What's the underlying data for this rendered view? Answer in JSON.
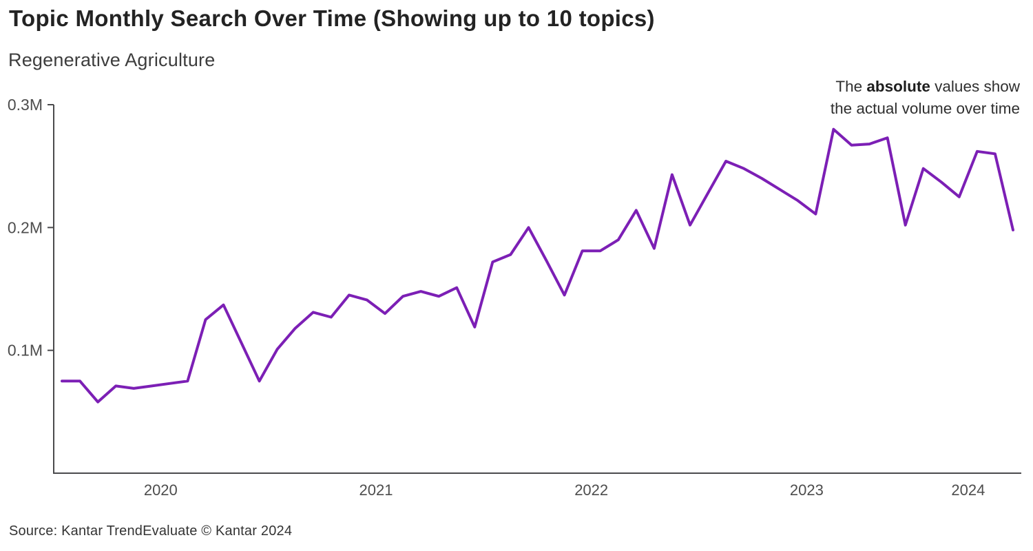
{
  "header": {
    "title": "Topic Monthly Search Over Time (Showing up to 10 topics)",
    "subtitle": "Regenerative Agriculture"
  },
  "annotation": {
    "line1_pre": "The ",
    "line1_bold": "absolute",
    "line1_post": " values show",
    "line2": "the actual volume over time"
  },
  "footer": {
    "source": "Source: Kantar TrendEvaluate © Kantar 2024"
  },
  "colors": {
    "line": "#7C1FB5",
    "axis": "#4a4a4c",
    "tick_label": "#4d4d4d",
    "title": "#232323"
  },
  "chart_data": {
    "type": "line",
    "title": "Topic Monthly Search Over Time (Showing up to 10 topics)",
    "series_name": "Regenerative Agriculture",
    "unit": "millions of monthly searches",
    "legend_position": "none",
    "grid": false,
    "ylim": [
      0,
      0.3
    ],
    "y_ticks": [
      {
        "label": "0.1M",
        "value": 0.1
      },
      {
        "label": "0.2M",
        "value": 0.2
      },
      {
        "label": "0.3M",
        "value": 0.3
      }
    ],
    "x_year_labels": [
      "2020",
      "2021",
      "2022",
      "2023",
      "2024"
    ],
    "x": [
      "Jan 2020",
      "Feb 2020",
      "Mar 2020",
      "Apr 2020",
      "May 2020",
      "Jun 2020",
      "Jul 2020",
      "Aug 2020",
      "Sep 2020",
      "Oct 2020",
      "Nov 2020",
      "Dec 2020",
      "Jan 2021",
      "Feb 2021",
      "Mar 2021",
      "Apr 2021",
      "May 2021",
      "Jun 2021",
      "Jul 2021",
      "Aug 2021",
      "Sep 2021",
      "Oct 2021",
      "Nov 2021",
      "Dec 2021",
      "Jan 2022",
      "Feb 2022",
      "Mar 2022",
      "Apr 2022",
      "May 2022",
      "Jun 2022",
      "Jul 2022",
      "Aug 2022",
      "Sep 2022",
      "Oct 2022",
      "Nov 2022",
      "Dec 2022",
      "Jan 2023",
      "Feb 2023",
      "Mar 2023",
      "Apr 2023",
      "May 2023",
      "Jun 2023",
      "Jul 2023",
      "Aug 2023",
      "Sep 2023",
      "Oct 2023",
      "Nov 2023",
      "Dec 2023",
      "Jan 2024",
      "Feb 2024",
      "Mar 2024",
      "Apr 2024",
      "May 2024",
      "Jun 2024"
    ],
    "values": [
      0.075,
      0.075,
      0.058,
      0.071,
      0.069,
      0.071,
      0.073,
      0.075,
      0.125,
      0.137,
      0.106,
      0.075,
      0.101,
      0.118,
      0.131,
      0.127,
      0.145,
      0.141,
      0.13,
      0.144,
      0.148,
      0.144,
      0.151,
      0.119,
      0.172,
      0.178,
      0.2,
      0.173,
      0.145,
      0.181,
      0.181,
      0.19,
      0.214,
      0.183,
      0.243,
      0.202,
      0.228,
      0.254,
      0.248,
      0.24,
      0.231,
      0.222,
      0.211,
      0.28,
      0.267,
      0.268,
      0.273,
      0.202,
      0.248,
      0.237,
      0.225,
      0.262,
      0.26,
      0.198
    ]
  }
}
